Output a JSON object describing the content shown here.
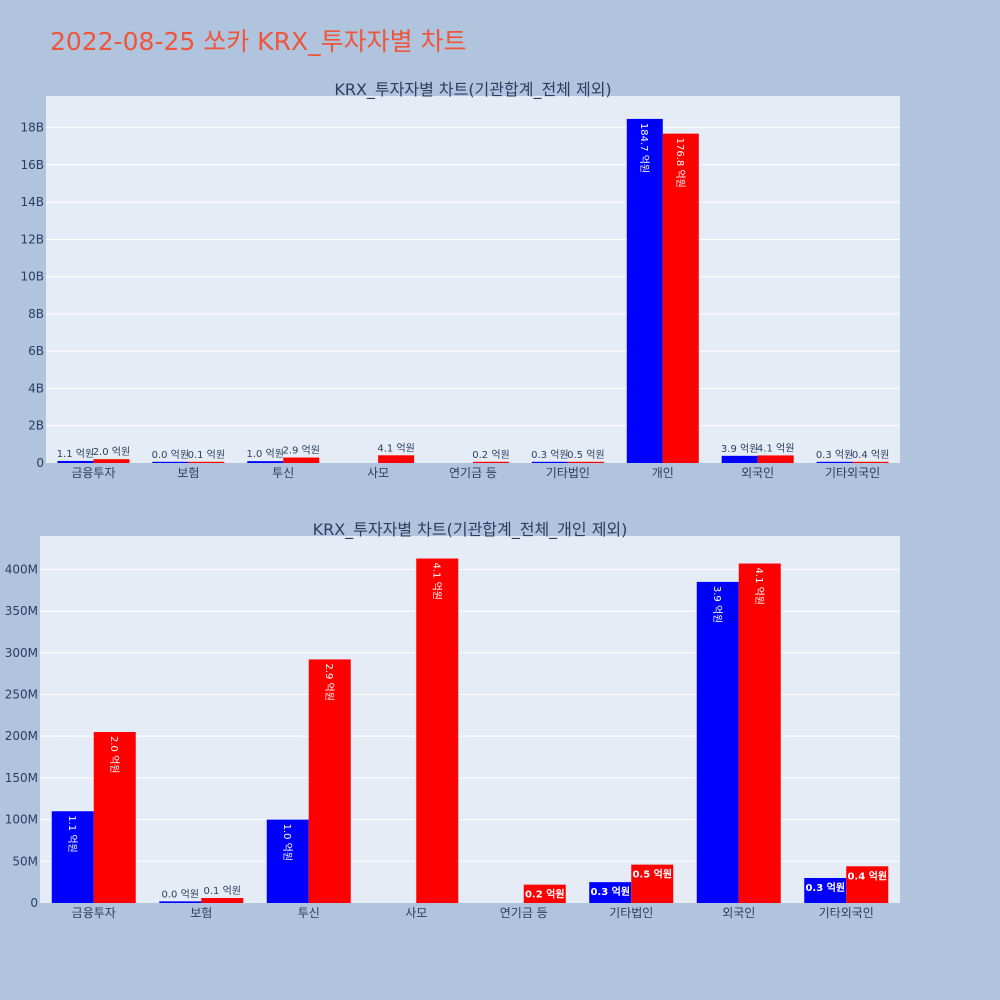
{
  "page": {
    "title": "2022-08-25 쏘카 KRX_투자자별 차트"
  },
  "colors": {
    "buy": "#0000ff",
    "sell": "#ff0000",
    "plot_bg": "#e5ecf6",
    "page_bg": "#b0c4de",
    "title": "#ef553b",
    "text": "#2a3f5f"
  },
  "chart_data": [
    {
      "type": "bar",
      "title": "KRX_투자자별 차트(기관합계_전체 제외)",
      "categories": [
        "금융투자",
        "보험",
        "투신",
        "사모",
        "연기금 등",
        "기타법인",
        "개인",
        "외국인",
        "기타외국인"
      ],
      "series": [
        {
          "color": "#0000ff",
          "values": [
            110000000,
            2000000,
            100000000,
            0,
            0,
            25000000,
            18470000000,
            385000000,
            30000000
          ],
          "labels": [
            "1.1 억원",
            "0.0 억원",
            "1.0 억원",
            "",
            "",
            "0.3 억원",
            "184.7 억원",
            "3.9 억원",
            "0.3 억원"
          ]
        },
        {
          "color": "#ff0000",
          "values": [
            205000000,
            6000000,
            292000000,
            413000000,
            22000000,
            46000000,
            17680000000,
            407000000,
            44000000
          ],
          "labels": [
            "2.0 억원",
            "0.1 억원",
            "2.9 억원",
            "4.1 억원",
            "0.2 억원",
            "0.5 억원",
            "176.8 억원",
            "4.1 억원",
            "0.4 억원"
          ]
        }
      ],
      "yticks": [
        0,
        2000000000,
        4000000000,
        6000000000,
        8000000000,
        10000000000,
        12000000000,
        14000000000,
        16000000000,
        18000000000
      ],
      "ytick_labels": [
        "0",
        "2B",
        "4B",
        "6B",
        "8B",
        "10B",
        "12B",
        "14B",
        "16B",
        "18B"
      ],
      "ylim": [
        0,
        19700000000
      ],
      "grid": true
    },
    {
      "type": "bar",
      "title": "KRX_투자자별 차트(기관합계_전체_개인 제외)",
      "categories": [
        "금융투자",
        "보험",
        "투신",
        "사모",
        "연기금 등",
        "기타법인",
        "외국인",
        "기타외국인"
      ],
      "series": [
        {
          "color": "#0000ff",
          "values": [
            110000000,
            2000000,
            100000000,
            0,
            0,
            25000000,
            385000000,
            30000000
          ],
          "labels": [
            "1.1 억원",
            "0.0 억원",
            "1.0 억원",
            "",
            "",
            "0.3 억원",
            "3.9 억원",
            "0.3 억원"
          ]
        },
        {
          "color": "#ff0000",
          "values": [
            205000000,
            6000000,
            292000000,
            413000000,
            22000000,
            46000000,
            407000000,
            44000000
          ],
          "labels": [
            "2.0 억원",
            "0.1 억원",
            "2.9 억원",
            "4.1 억원",
            "0.2 억원",
            "0.5 억원",
            "4.1 억원",
            "0.4 억원"
          ]
        }
      ],
      "yticks": [
        0,
        50000000,
        100000000,
        150000000,
        200000000,
        250000000,
        300000000,
        350000000,
        400000000
      ],
      "ytick_labels": [
        "0",
        "50M",
        "100M",
        "150M",
        "200M",
        "250M",
        "300M",
        "350M",
        "400M"
      ],
      "ylim": [
        0,
        440000000
      ],
      "grid": true
    }
  ]
}
